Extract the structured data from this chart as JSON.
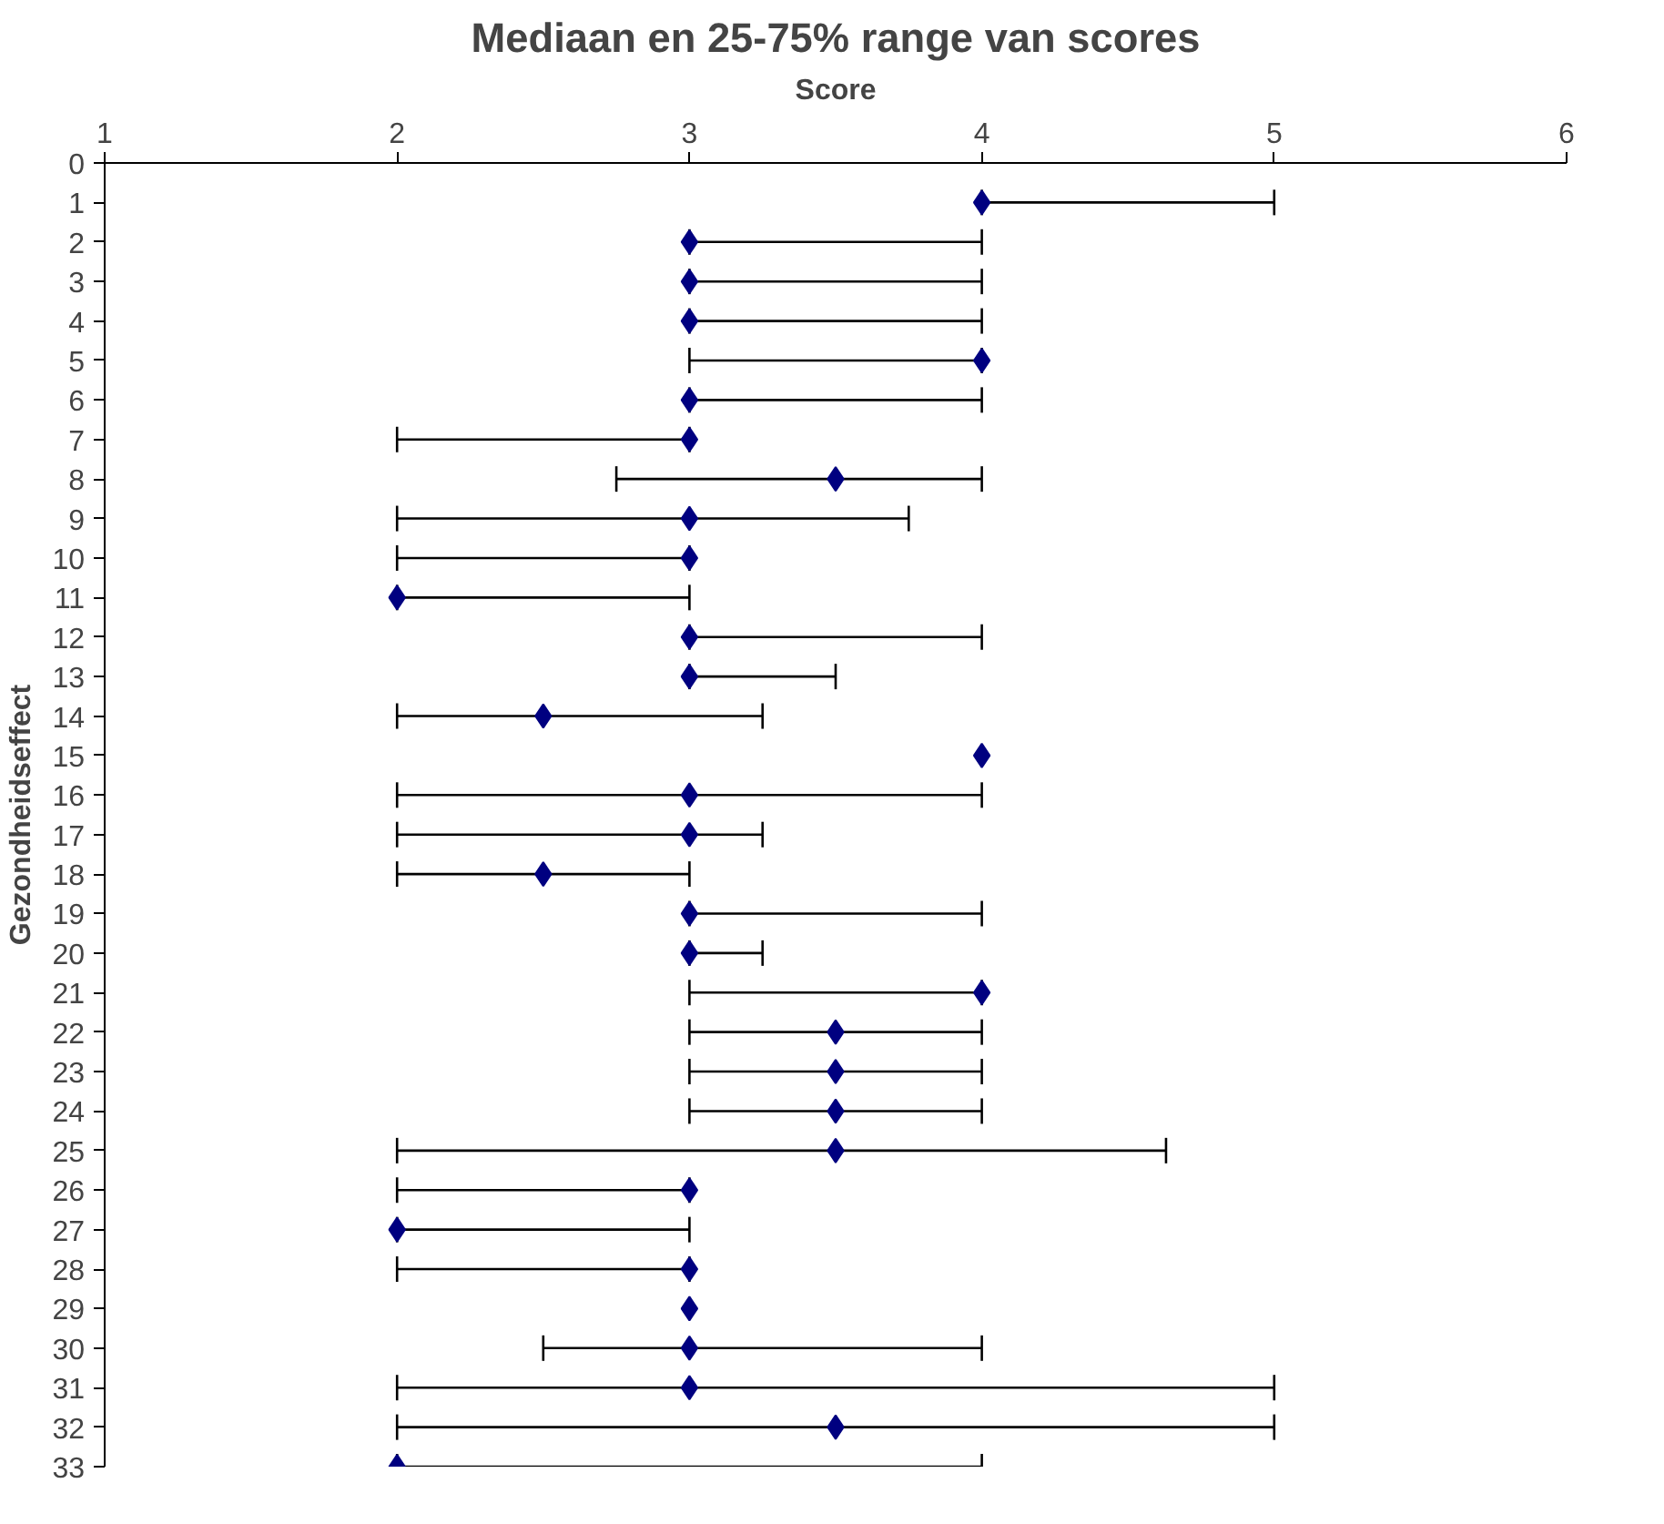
{
  "chart_data": {
    "type": "scatter",
    "title": "Mediaan en 25-75% range van scores",
    "xlabel": "Score",
    "ylabel": "Gezondheidseffect",
    "x": [
      4,
      3,
      3,
      3,
      4,
      3,
      3,
      3.5,
      3,
      3,
      2,
      3,
      3,
      2.5,
      4,
      3,
      3,
      2.5,
      3,
      3,
      4,
      3.5,
      3.5,
      3.5,
      3.5,
      3,
      2,
      3,
      3,
      3,
      3,
      3.5,
      2
    ],
    "values": [
      1,
      2,
      3,
      4,
      5,
      6,
      7,
      8,
      9,
      10,
      11,
      12,
      13,
      14,
      15,
      16,
      17,
      18,
      19,
      20,
      21,
      22,
      23,
      24,
      25,
      26,
      27,
      28,
      29,
      30,
      31,
      32,
      33
    ],
    "xerrors": [
      [
        4,
        5
      ],
      [
        3,
        4
      ],
      [
        3,
        4
      ],
      [
        3,
        4
      ],
      [
        3,
        4
      ],
      [
        3,
        4
      ],
      [
        2,
        3
      ],
      [
        2.75,
        4
      ],
      [
        2,
        3.75
      ],
      [
        2,
        3
      ],
      [
        2,
        3
      ],
      [
        3,
        4
      ],
      [
        3,
        3.5
      ],
      [
        2,
        3.25
      ],
      null,
      [
        2,
        4
      ],
      [
        2,
        3.25
      ],
      [
        2,
        3
      ],
      [
        3,
        4
      ],
      [
        3,
        3.25
      ],
      [
        3,
        4
      ],
      [
        3,
        4
      ],
      [
        3,
        4
      ],
      [
        3,
        4
      ],
      [
        2,
        4.63
      ],
      [
        2,
        3
      ],
      [
        2,
        3
      ],
      [
        2,
        3
      ],
      null,
      [
        2.5,
        4
      ],
      [
        2,
        5
      ],
      [
        2,
        5
      ],
      [
        2,
        4
      ]
    ],
    "color": "#000080",
    "marker": "diamond",
    "grid": false,
    "xlim": [
      1,
      6
    ],
    "xticks": [
      1,
      2,
      3,
      4,
      5,
      6
    ],
    "ylim": [
      33,
      0
    ],
    "yticks": [
      0,
      1,
      2,
      3,
      4,
      5,
      6,
      7,
      8,
      9,
      10,
      11,
      12,
      13,
      14,
      15,
      16,
      17,
      18,
      19,
      20,
      21,
      22,
      23,
      24,
      25,
      26,
      27,
      28,
      29,
      30,
      31,
      32,
      33
    ]
  }
}
